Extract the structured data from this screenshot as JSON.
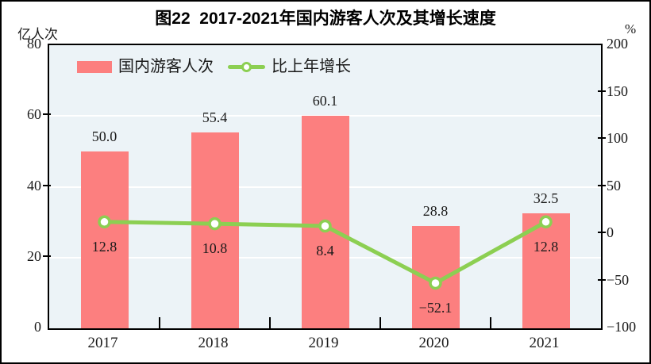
{
  "figure": {
    "title": "图22  2017-2021年国内游客人次及其增长速度"
  },
  "chart_data": {
    "type": "bar",
    "subtype": "bar+line combo, dual axis",
    "title": "图22  2017-2021年国内游客人次及其增长速度",
    "categories": [
      "2017",
      "2018",
      "2019",
      "2020",
      "2021"
    ],
    "series": [
      {
        "name": "国内游客人次",
        "type": "bar",
        "axis": "left",
        "values": [
          50.0,
          55.4,
          60.1,
          28.8,
          32.5
        ],
        "labels": [
          "50.0",
          "55.4",
          "60.1",
          "28.8",
          "32.5"
        ],
        "color": "#fc7f7f"
      },
      {
        "name": "比上年增长",
        "type": "line",
        "axis": "right",
        "values": [
          12.8,
          10.8,
          8.4,
          -52.1,
          12.8
        ],
        "labels": [
          "12.8",
          "10.8",
          "8.4",
          "−52.1",
          "12.8"
        ],
        "color": "#8ccf52",
        "marker_fill": "#ffffff"
      }
    ],
    "left_axis": {
      "label": "亿人次",
      "min": 0,
      "max": 80,
      "tick_values": [
        80,
        60,
        40,
        20,
        0
      ],
      "tick_labels": [
        "80",
        "60",
        "40",
        "20",
        "0"
      ]
    },
    "right_axis": {
      "label": "%",
      "min": -100,
      "max": 200,
      "tick_values": [
        200,
        150,
        100,
        50,
        0,
        -50,
        -100
      ],
      "tick_labels": [
        "200",
        "150",
        "100",
        "50",
        "0",
        "−50",
        "−100"
      ]
    },
    "gridlines": {
      "on": true,
      "at_left_values": [
        60,
        40,
        20
      ],
      "color": "#ffffff"
    },
    "legend": {
      "position": "top-left-inside",
      "entries": [
        "国内游客人次",
        "比上年增长"
      ]
    },
    "plot_bg": "#ecf3f7",
    "text_color": "#1a1a1a"
  }
}
